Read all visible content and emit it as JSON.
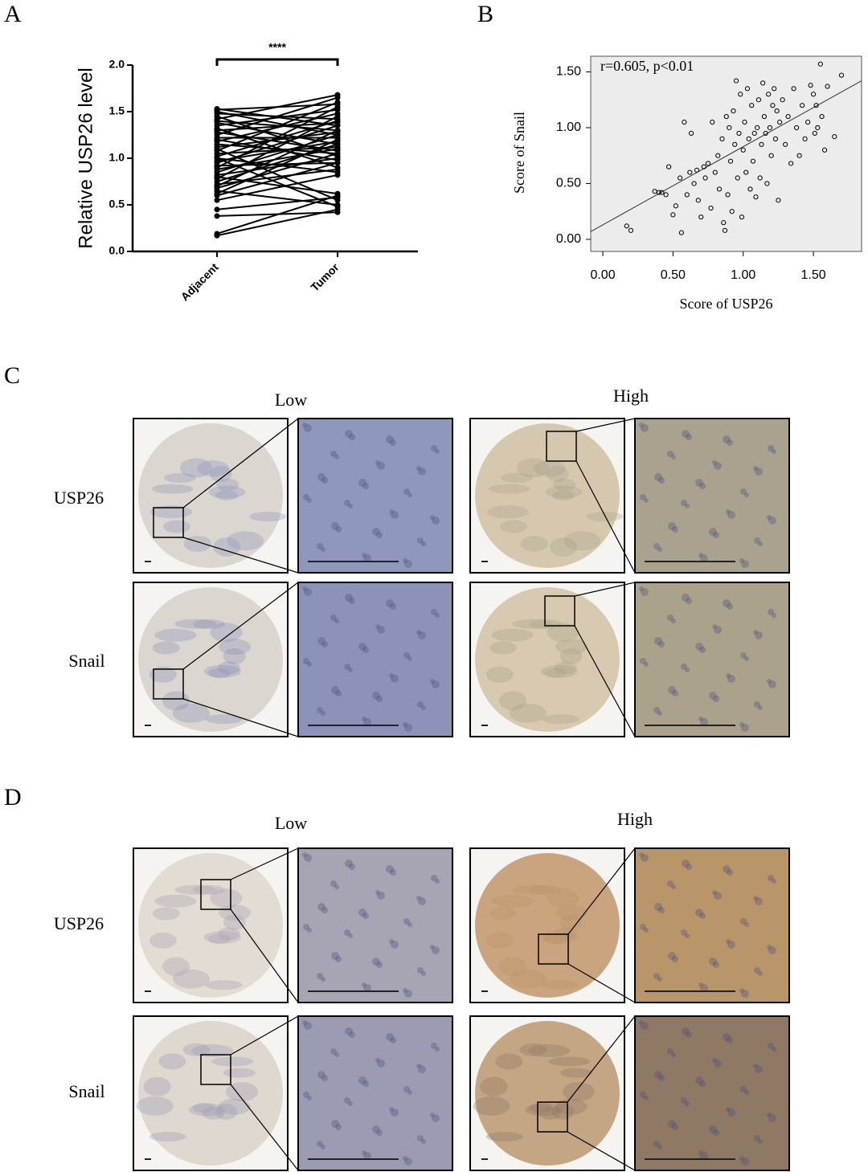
{
  "chart_data": [
    {
      "type": "paired",
      "panel": "A",
      "ylabel": "Relative USP26 level",
      "annotation": "****",
      "categories": [
        "Adjacent",
        "Tumor"
      ],
      "color": "#000000",
      "ylim": [
        0,
        2
      ],
      "yticks": [
        {
          "value": 0,
          "label": "0.0"
        },
        {
          "value": 0.5,
          "label": "0.5"
        },
        {
          "value": 1,
          "label": "1.0"
        },
        {
          "value": 1.5,
          "label": "1.5"
        },
        {
          "value": 2,
          "label": "2.0"
        }
      ],
      "series": [
        {
          "values": [
            0.17,
            0.45
          ]
        },
        {
          "values": [
            0.19,
            0.6
          ]
        },
        {
          "values": [
            0.38,
            0.42
          ]
        },
        {
          "values": [
            0.45,
            0.58
          ]
        },
        {
          "values": [
            0.55,
            0.82
          ]
        },
        {
          "values": [
            0.6,
            0.95
          ]
        },
        {
          "values": [
            0.62,
            1.2
          ]
        },
        {
          "values": [
            0.65,
            0.5
          ]
        },
        {
          "values": [
            0.68,
            1.05
          ]
        },
        {
          "values": [
            0.7,
            1.3
          ]
        },
        {
          "values": [
            0.72,
            0.88
          ]
        },
        {
          "values": [
            0.75,
            1.15
          ]
        },
        {
          "values": [
            0.78,
            1.45
          ]
        },
        {
          "values": [
            0.8,
            0.62
          ]
        },
        {
          "values": [
            0.82,
            1.0
          ]
        },
        {
          "values": [
            0.85,
            1.25
          ]
        },
        {
          "values": [
            0.88,
            1.1
          ]
        },
        {
          "values": [
            0.9,
            1.55
          ]
        },
        {
          "values": [
            0.92,
            0.95
          ]
        },
        {
          "values": [
            0.95,
            1.35
          ]
        },
        {
          "values": [
            0.97,
            1.18
          ]
        },
        {
          "values": [
            1.0,
            0.85
          ]
        },
        {
          "values": [
            1.02,
            1.4
          ]
        },
        {
          "values": [
            1.05,
            1.12
          ]
        },
        {
          "values": [
            1.08,
            1.6
          ]
        },
        {
          "values": [
            1.1,
            0.55
          ]
        },
        {
          "values": [
            1.12,
            1.28
          ]
        },
        {
          "values": [
            1.15,
            1.05
          ]
        },
        {
          "values": [
            1.18,
            1.48
          ]
        },
        {
          "values": [
            1.2,
            0.98
          ]
        },
        {
          "values": [
            1.22,
            1.22
          ]
        },
        {
          "values": [
            1.25,
            1.65
          ]
        },
        {
          "values": [
            1.28,
            1.08
          ]
        },
        {
          "values": [
            1.3,
            1.38
          ]
        },
        {
          "values": [
            1.32,
            0.9
          ]
        },
        {
          "values": [
            1.35,
            1.52
          ]
        },
        {
          "values": [
            1.38,
            1.15
          ]
        },
        {
          "values": [
            1.4,
            1.3
          ]
        },
        {
          "values": [
            1.42,
            1.68
          ]
        },
        {
          "values": [
            1.45,
            1.02
          ]
        },
        {
          "values": [
            1.48,
            1.42
          ]
        },
        {
          "values": [
            1.5,
            1.25
          ]
        },
        {
          "values": [
            1.52,
            1.58
          ]
        },
        {
          "values": [
            1.53,
            1.35
          ]
        },
        {
          "values": [
            1.0,
            0.48
          ]
        }
      ]
    },
    {
      "type": "scatter",
      "panel": "B",
      "annotation": "r=0.605, p<0.01",
      "xlabel": "Score of USP26",
      "ylabel": "Score of Snail",
      "color": "#000000",
      "background": "#ececec",
      "xlim": [
        -0.086,
        1.843
      ],
      "ylim": [
        -0.108,
        1.64
      ],
      "xticks": [
        {
          "value": 0,
          "label": "0.00"
        },
        {
          "value": 0.5,
          "label": "0.50"
        },
        {
          "value": 1,
          "label": "1.00"
        },
        {
          "value": 1.5,
          "label": "1.50"
        }
      ],
      "yticks": [
        {
          "value": 0,
          "label": "0.00"
        },
        {
          "value": 0.5,
          "label": "0.50"
        },
        {
          "value": 1,
          "label": "1.00"
        },
        {
          "value": 1.5,
          "label": "1.50"
        }
      ],
      "trendline": {
        "slope": 0.7,
        "intercept": 0.13
      },
      "x": [
        0.17,
        0.2,
        0.37,
        0.42,
        0.45,
        0.47,
        0.5,
        0.52,
        0.55,
        0.56,
        0.58,
        0.6,
        0.62,
        0.63,
        0.65,
        0.67,
        0.68,
        0.7,
        0.72,
        0.73,
        0.75,
        0.77,
        0.78,
        0.8,
        0.82,
        0.83,
        0.85,
        0.86,
        0.87,
        0.88,
        0.89,
        0.9,
        0.91,
        0.92,
        0.93,
        0.94,
        0.95,
        0.96,
        0.97,
        0.98,
        0.99,
        1.0,
        1.01,
        1.02,
        1.03,
        1.04,
        1.05,
        1.06,
        1.07,
        1.08,
        1.09,
        1.1,
        1.11,
        1.12,
        1.13,
        1.14,
        1.15,
        1.16,
        1.17,
        1.18,
        1.19,
        1.2,
        1.21,
        1.22,
        1.23,
        1.24,
        1.25,
        1.26,
        1.28,
        1.3,
        1.32,
        1.34,
        1.36,
        1.38,
        1.4,
        1.42,
        1.44,
        1.46,
        1.48,
        1.5,
        1.51,
        1.52,
        1.53,
        1.55,
        1.56,
        1.58,
        1.6,
        1.65,
        1.7,
        0.4
      ],
      "values": [
        0.12,
        0.08,
        0.43,
        0.42,
        0.4,
        0.65,
        0.22,
        0.3,
        0.55,
        0.06,
        1.05,
        0.4,
        0.6,
        0.95,
        0.5,
        0.62,
        0.35,
        0.2,
        0.65,
        0.55,
        0.68,
        0.28,
        1.05,
        0.6,
        0.75,
        0.45,
        0.9,
        0.15,
        0.08,
        1.1,
        0.4,
        1.0,
        0.7,
        0.25,
        1.15,
        0.85,
        1.42,
        0.55,
        0.95,
        1.3,
        0.2,
        0.8,
        1.05,
        0.6,
        1.35,
        0.9,
        0.45,
        1.2,
        0.7,
        0.95,
        0.38,
        1.0,
        1.25,
        0.55,
        0.85,
        1.4,
        1.1,
        0.95,
        0.5,
        1.3,
        1.0,
        0.75,
        1.2,
        1.35,
        0.9,
        1.15,
        0.35,
        1.05,
        1.25,
        0.85,
        1.1,
        0.68,
        1.35,
        1.0,
        0.75,
        1.2,
        0.9,
        1.05,
        1.38,
        1.3,
        0.95,
        1.2,
        1.0,
        1.57,
        1.1,
        0.8,
        1.37,
        0.92,
        1.47,
        0.42
      ]
    }
  ],
  "panels": [
    {
      "panel": "C",
      "columns": [
        "Low",
        "High"
      ],
      "rows": [
        "USP26",
        "Snail"
      ]
    },
    {
      "panel": "D",
      "columns": [
        "Low",
        "High"
      ],
      "rows": [
        "USP26",
        "Snail"
      ]
    }
  ]
}
